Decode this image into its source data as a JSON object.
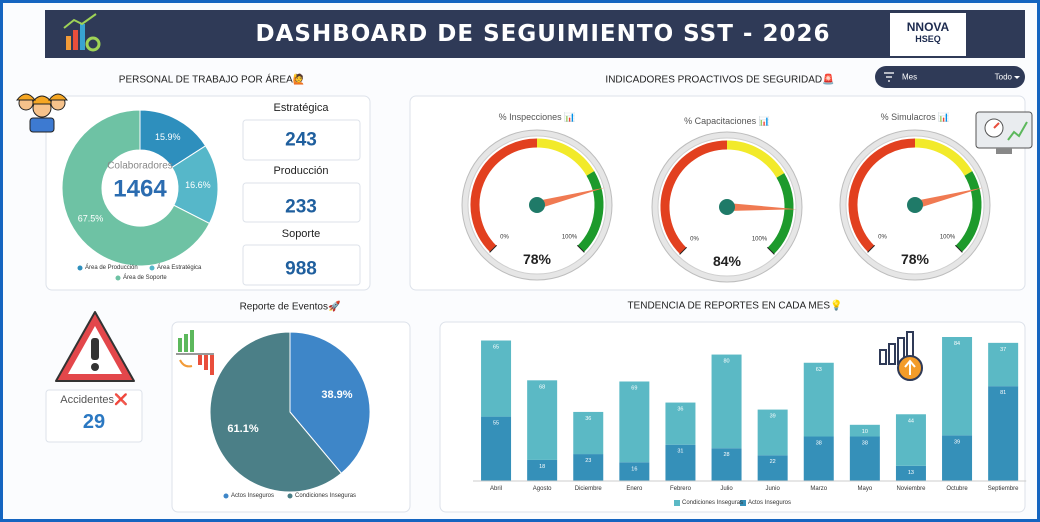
{
  "header": {
    "title": "DASHBOARD DE SEGUIMIENTO SST - 2026",
    "logo": "NNOVA",
    "logo_sub": "HSEQ"
  },
  "filter": {
    "label": "Mes",
    "value": "Todo"
  },
  "kpis": {
    "cards": [
      {
        "label": "Estratégica",
        "value": 243
      },
      {
        "label": "Producción",
        "value": 233
      },
      {
        "label": "Soporte",
        "value": 988
      }
    ],
    "accidents": {
      "label": "Accidentes❌",
      "value": 29
    }
  },
  "chart_data": [
    {
      "type": "donut",
      "title": "PERSONAL DE TRABAJO POR ÁREA🙋",
      "center_label": "Colaboradores",
      "center_value": 1464,
      "categories": [
        "Área de Producción",
        "Área Estratégica",
        "Área de Soporte"
      ],
      "values": [
        15.9,
        16.6,
        67.5
      ],
      "value_labels": [
        "15.9%",
        "16.6%",
        "67.5%"
      ],
      "colors": [
        "#2e8fbd",
        "#56b7c9",
        "#6ec2a4"
      ]
    },
    {
      "type": "gauge",
      "title": "INDICADORES PROACTIVOS DE SEGURIDAD🚨",
      "ylim": [
        0,
        100
      ],
      "yticks": [
        {
          "value": 0,
          "label": "0%"
        },
        {
          "value": 100,
          "label": "100%"
        }
      ],
      "gauges": [
        {
          "title": "% Inspecciones 📊",
          "value": 78,
          "value_label": "78%"
        },
        {
          "title": "% Capacitaciones 📊",
          "value": 84,
          "value_label": "84%"
        },
        {
          "title": "% Simulacros 📊",
          "value": 78,
          "value_label": "78%"
        }
      ]
    },
    {
      "type": "pie",
      "title": "Reporte de Eventos🚀",
      "categories": [
        "Actos Inseguros",
        "Condiciones Inseguras"
      ],
      "values": [
        38.9,
        61.1
      ],
      "value_labels": [
        "38.9%",
        "61.1%"
      ],
      "colors": [
        "#3e86c8",
        "#4b7f87"
      ]
    },
    {
      "type": "stacked_bar",
      "title": "TENDENCIA DE REPORTES EN CADA MES💡",
      "categories": [
        "Abril",
        "Agosto",
        "Diciembre",
        "Enero",
        "Febrero",
        "Julio",
        "Junio",
        "Marzo",
        "Mayo",
        "Noviembre",
        "Octubre",
        "Septiembre"
      ],
      "series": [
        {
          "name": "Actos Inseguros",
          "color": "#3590b9",
          "values": [
            55,
            18,
            23,
            16,
            31,
            28,
            22,
            38,
            38,
            13,
            39,
            81
          ]
        },
        {
          "name": "Condiciones Inseguras",
          "color": "#5bb9c5",
          "values": [
            65,
            68,
            36,
            69,
            36,
            80,
            39,
            63,
            10,
            44,
            84,
            37
          ]
        }
      ]
    }
  ]
}
